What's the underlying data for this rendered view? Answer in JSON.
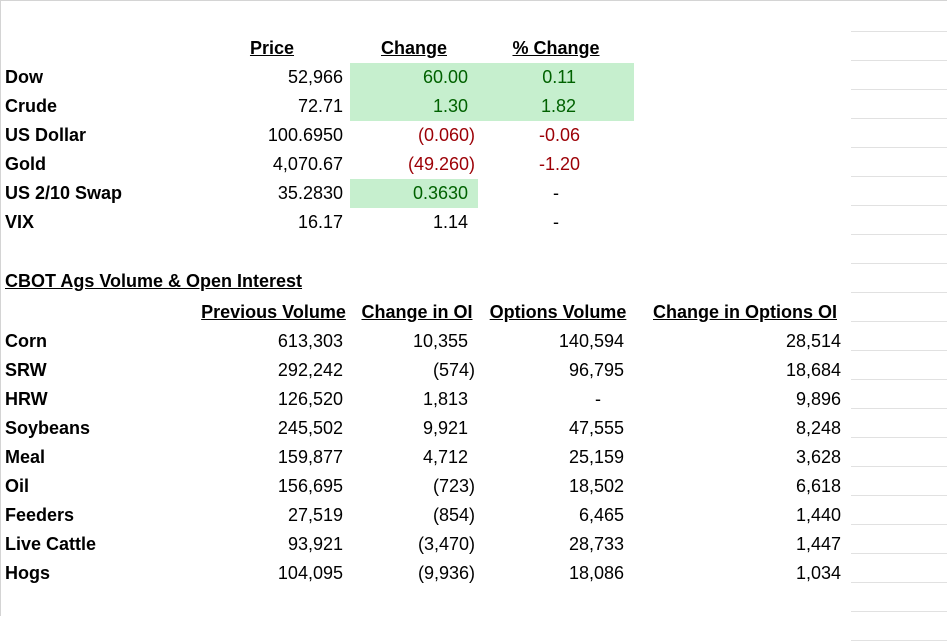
{
  "market": {
    "headers": [
      "Price",
      "Change ",
      "% Change"
    ],
    "rows": [
      [
        "Dow",
        "52,966",
        "60.00",
        "0.11"
      ],
      [
        "Crude",
        "72.71",
        "1.30",
        "1.82"
      ],
      [
        "US Dollar",
        "100.6950",
        "(0.060)",
        "-0.06"
      ],
      [
        "Gold",
        "4,070.67",
        "(49.260)",
        "-1.20"
      ],
      [
        "US 2/10 Swap",
        "35.2830",
        "0.3630",
        "-"
      ],
      [
        "VIX",
        "16.17",
        "1.14",
        "-"
      ]
    ]
  },
  "ags": {
    "title": "CBOT Ags Volume & Open Interest",
    "headers": [
      "Previous Volume",
      "Change in OI",
      "Options Volume",
      "Change in Options OI"
    ],
    "rows": [
      [
        "Corn",
        "613,303",
        "10,355",
        "140,594",
        "28,514"
      ],
      [
        "SRW",
        "292,242",
        "(574)",
        "96,795",
        "18,684"
      ],
      [
        "HRW",
        "126,520",
        "1,813",
        "-",
        "9,896"
      ],
      [
        "Soybeans",
        "245,502",
        "9,921",
        "47,555",
        "8,248"
      ],
      [
        "Meal",
        "159,877",
        "4,712",
        "25,159",
        "3,628"
      ],
      [
        "Oil",
        "156,695",
        "(723)",
        "18,502",
        "6,618"
      ],
      [
        "Feeders",
        "27,519",
        "(854)",
        "6,465",
        "1,440"
      ],
      [
        "Live Cattle",
        "93,921",
        "(3,470)",
        "28,733",
        "1,447"
      ],
      [
        "Hogs",
        "104,095",
        "(9,936)",
        "18,086",
        "1,034"
      ]
    ]
  }
}
